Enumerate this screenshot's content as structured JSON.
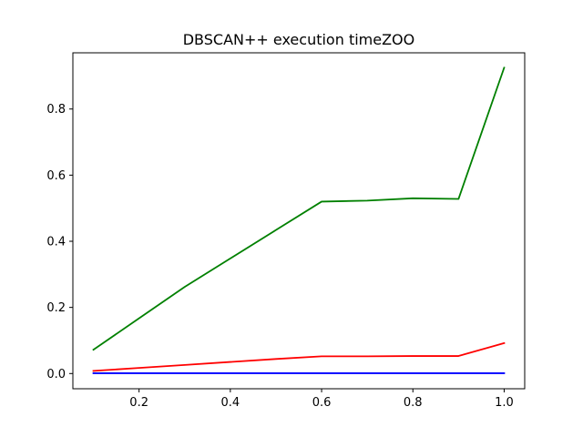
{
  "chart_data": {
    "type": "line",
    "title": "DBSCAN++  execution timeZOO",
    "xlabel": "",
    "ylabel": "",
    "xlim": [
      0.055,
      1.045
    ],
    "ylim": [
      -0.046,
      0.97
    ],
    "xticks": [
      0.2,
      0.4,
      0.6,
      0.8,
      1.0
    ],
    "xtick_labels": [
      "0.2",
      "0.4",
      "0.6",
      "0.8",
      "1.0"
    ],
    "yticks": [
      0.0,
      0.2,
      0.4,
      0.6,
      0.8
    ],
    "ytick_labels": [
      "0.0",
      "0.2",
      "0.4",
      "0.6",
      "0.8"
    ],
    "grid": false,
    "legend": "none",
    "x": [
      0.1,
      0.2,
      0.3,
      0.4,
      0.5,
      0.6,
      0.7,
      0.8,
      0.9,
      1.0
    ],
    "series": [
      {
        "color": "#008000",
        "values": [
          0.072,
          0.167,
          0.262,
          0.348,
          0.434,
          0.52,
          0.523,
          0.53,
          0.528,
          0.925
        ]
      },
      {
        "color": "#ff0000",
        "values": [
          0.008,
          0.017,
          0.026,
          0.035,
          0.044,
          0.052,
          0.052,
          0.053,
          0.053,
          0.092
        ]
      },
      {
        "color": "#0000ff",
        "values": [
          0.001,
          0.001,
          0.001,
          0.001,
          0.001,
          0.001,
          0.001,
          0.001,
          0.001,
          0.001
        ]
      }
    ]
  }
}
